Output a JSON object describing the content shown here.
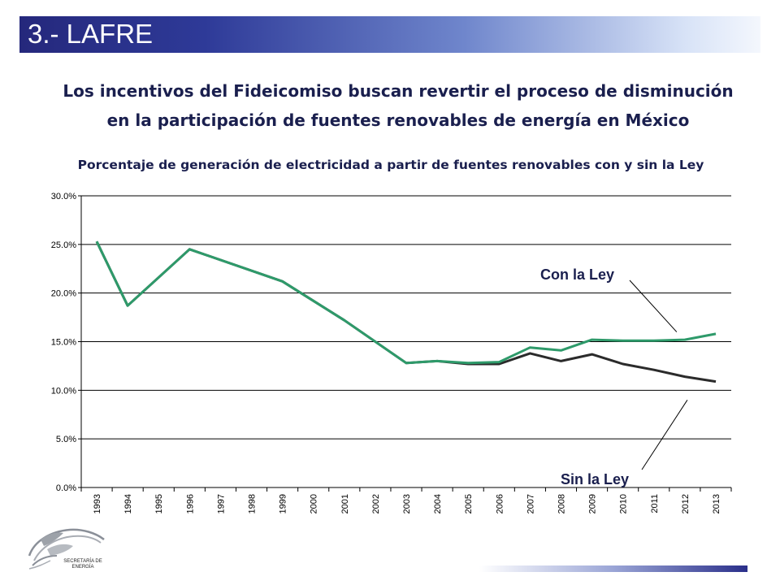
{
  "slide": {
    "title": "3.- LAFRE",
    "subtitle_line1": "Los incentivos del Fideicomiso buscan revertir el proceso de disminución",
    "subtitle_line2": "en la participación de fuentes renovables de energía en México",
    "logo_text_line1": "SECRETARÍA DE",
    "logo_text_line2": "ENERGÍA"
  },
  "colors": {
    "con_ley": "#2e9a6a",
    "sin_ley": "#2b2b2b",
    "title_bar": "#25287c",
    "text": "#1a1f4e"
  },
  "chart_data": {
    "type": "line",
    "title": "Porcentaje de generación de electricidad a partir de fuentes renovables con y sin la Ley",
    "x": [
      "1993",
      "1994",
      "1995",
      "1996",
      "1997",
      "1998",
      "1999",
      "2000",
      "2001",
      "2002",
      "2003",
      "2004",
      "2005",
      "2006",
      "2007",
      "2008",
      "2009",
      "2010",
      "2011",
      "2012",
      "2013"
    ],
    "ylim": [
      0,
      30
    ],
    "yticks": [
      "0.0%",
      "5.0%",
      "10.0%",
      "15.0%",
      "20.0%",
      "25.0%",
      "30.0%"
    ],
    "grid": true,
    "series": [
      {
        "name": "Sin la Ley",
        "values": [
          25.3,
          18.7,
          24.5,
          21.2,
          17.2,
          12.8,
          13.0,
          12.7,
          12.7,
          13.8,
          13.0,
          13.7,
          12.7,
          12.1,
          11.4,
          10.9
        ],
        "x": [
          "1993",
          "1994",
          "1996",
          "1999",
          "2001",
          "2003",
          "2004",
          "2005",
          "2006",
          "2007",
          "2008",
          "2009",
          "2010",
          "2011",
          "2012",
          "2013"
        ]
      },
      {
        "name": "Con la Ley",
        "values": [
          25.3,
          18.7,
          24.5,
          21.2,
          17.2,
          12.8,
          13.0,
          12.8,
          12.9,
          14.4,
          14.1,
          15.2,
          15.1,
          15.1,
          15.2,
          15.8
        ],
        "x": [
          "1993",
          "1994",
          "1996",
          "1999",
          "2001",
          "2003",
          "2004",
          "2005",
          "2006",
          "2007",
          "2008",
          "2009",
          "2010",
          "2011",
          "2012",
          "2013"
        ]
      }
    ],
    "annotations": [
      "Con la Ley",
      "Sin la Ley"
    ]
  }
}
